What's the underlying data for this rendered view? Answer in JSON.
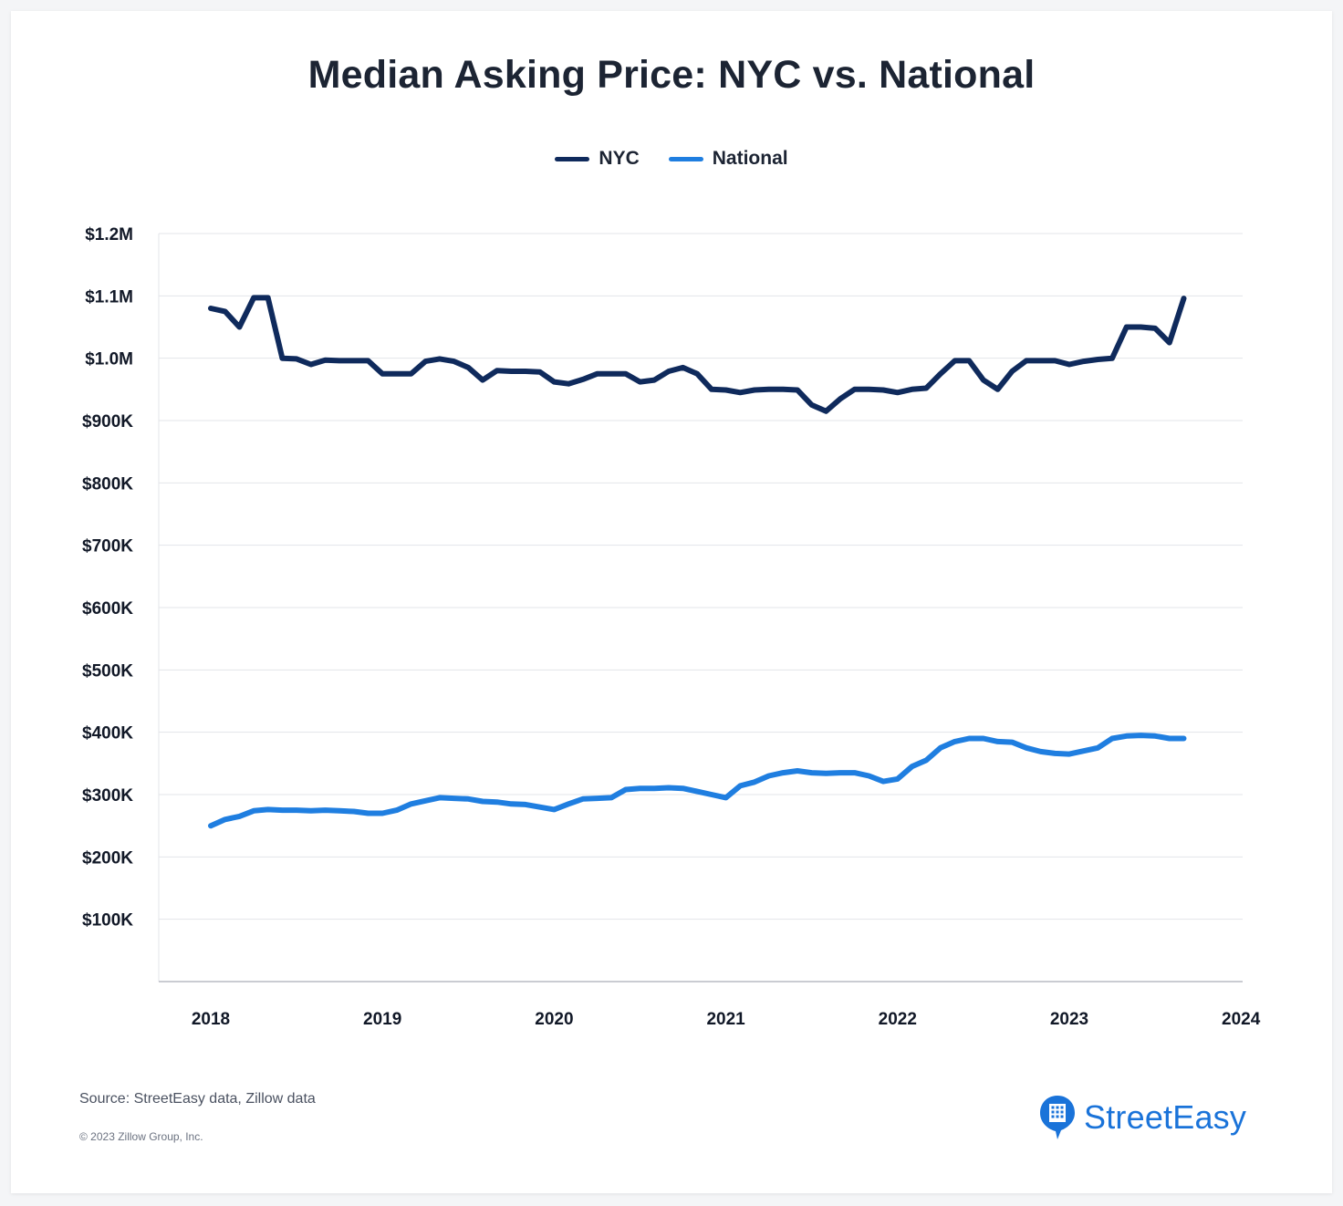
{
  "chart_data": {
    "type": "line",
    "title": "Median Asking Price: NYC vs. National",
    "xlabel": "",
    "ylabel": "",
    "xlim": [
      2018,
      2024
    ],
    "ylim": [
      0,
      1200000
    ],
    "x_ticks": [
      "2018",
      "2019",
      "2020",
      "2021",
      "2022",
      "2023",
      "2024"
    ],
    "y_ticks": [
      {
        "value": 100000,
        "label": "$100K"
      },
      {
        "value": 200000,
        "label": "$200K"
      },
      {
        "value": 300000,
        "label": "$300K"
      },
      {
        "value": 400000,
        "label": "$400K"
      },
      {
        "value": 500000,
        "label": "$500K"
      },
      {
        "value": 600000,
        "label": "$600K"
      },
      {
        "value": 700000,
        "label": "$700K"
      },
      {
        "value": 800000,
        "label": "$800K"
      },
      {
        "value": 900000,
        "label": "$900K"
      },
      {
        "value": 1000000,
        "label": "$1.0M"
      },
      {
        "value": 1100000,
        "label": "$1.1M"
      },
      {
        "value": 1200000,
        "label": "$1.2M"
      }
    ],
    "grid": true,
    "legend_position": "top-center",
    "x": [
      "2018-01",
      "2018-02",
      "2018-03",
      "2018-04",
      "2018-05",
      "2018-06",
      "2018-07",
      "2018-08",
      "2018-09",
      "2018-10",
      "2018-11",
      "2018-12",
      "2019-01",
      "2019-02",
      "2019-03",
      "2019-04",
      "2019-05",
      "2019-06",
      "2019-07",
      "2019-08",
      "2019-09",
      "2019-10",
      "2019-11",
      "2019-12",
      "2020-01",
      "2020-02",
      "2020-03",
      "2020-04",
      "2020-05",
      "2020-06",
      "2020-07",
      "2020-08",
      "2020-09",
      "2020-10",
      "2020-11",
      "2020-12",
      "2021-01",
      "2021-02",
      "2021-03",
      "2021-04",
      "2021-05",
      "2021-06",
      "2021-07",
      "2021-08",
      "2021-09",
      "2021-10",
      "2021-11",
      "2021-12",
      "2022-01",
      "2022-02",
      "2022-03",
      "2022-04",
      "2022-05",
      "2022-06",
      "2022-07",
      "2022-08",
      "2022-09",
      "2022-10",
      "2022-11",
      "2022-12",
      "2023-01",
      "2023-02",
      "2023-03",
      "2023-04",
      "2023-05",
      "2023-06",
      "2023-07",
      "2023-08",
      "2023-09"
    ],
    "series": [
      {
        "name": "NYC",
        "color": "#0f2a5c",
        "values": [
          1080000,
          1075000,
          1050000,
          1097000,
          1097000,
          1000000,
          999000,
          990000,
          997000,
          996000,
          996000,
          996000,
          975000,
          975000,
          975000,
          995000,
          999000,
          995000,
          985000,
          965000,
          980000,
          979000,
          979000,
          978000,
          962000,
          959000,
          966000,
          975000,
          975000,
          975000,
          962000,
          965000,
          979000,
          985000,
          975000,
          950000,
          949000,
          945000,
          949000,
          950000,
          950000,
          949000,
          925000,
          915000,
          935000,
          950000,
          950000,
          949000,
          945000,
          950000,
          952000,
          975000,
          996000,
          996000,
          965000,
          950000,
          979000,
          996000,
          996000,
          996000,
          990000,
          995000,
          998000,
          1000000,
          1050000,
          1050000,
          1048000,
          1025000,
          1096000
        ]
      },
      {
        "name": "National",
        "color": "#1f7ee0",
        "values": [
          250000,
          260000,
          265000,
          274000,
          276000,
          275000,
          275000,
          274000,
          275000,
          274000,
          273000,
          270000,
          270000,
          275000,
          285000,
          290000,
          295000,
          294000,
          293000,
          289000,
          288000,
          285000,
          284000,
          280000,
          276000,
          285000,
          293000,
          294000,
          295000,
          308000,
          310000,
          310000,
          311000,
          310000,
          305000,
          300000,
          295000,
          314000,
          320000,
          330000,
          335000,
          338000,
          335000,
          334000,
          335000,
          335000,
          330000,
          321000,
          325000,
          345000,
          355000,
          375000,
          385000,
          390000,
          390000,
          385000,
          384000,
          375000,
          369000,
          366000,
          365000,
          370000,
          375000,
          390000,
          394000,
          395000,
          394000,
          390000,
          390000
        ]
      }
    ]
  },
  "footer": {
    "source": "Source: StreetEasy data, Zillow data",
    "copyright": "© 2023 Zillow Group, Inc."
  },
  "brand": {
    "name": "StreetEasy",
    "icon": "building-pin-icon",
    "color": "#1a73d9"
  }
}
